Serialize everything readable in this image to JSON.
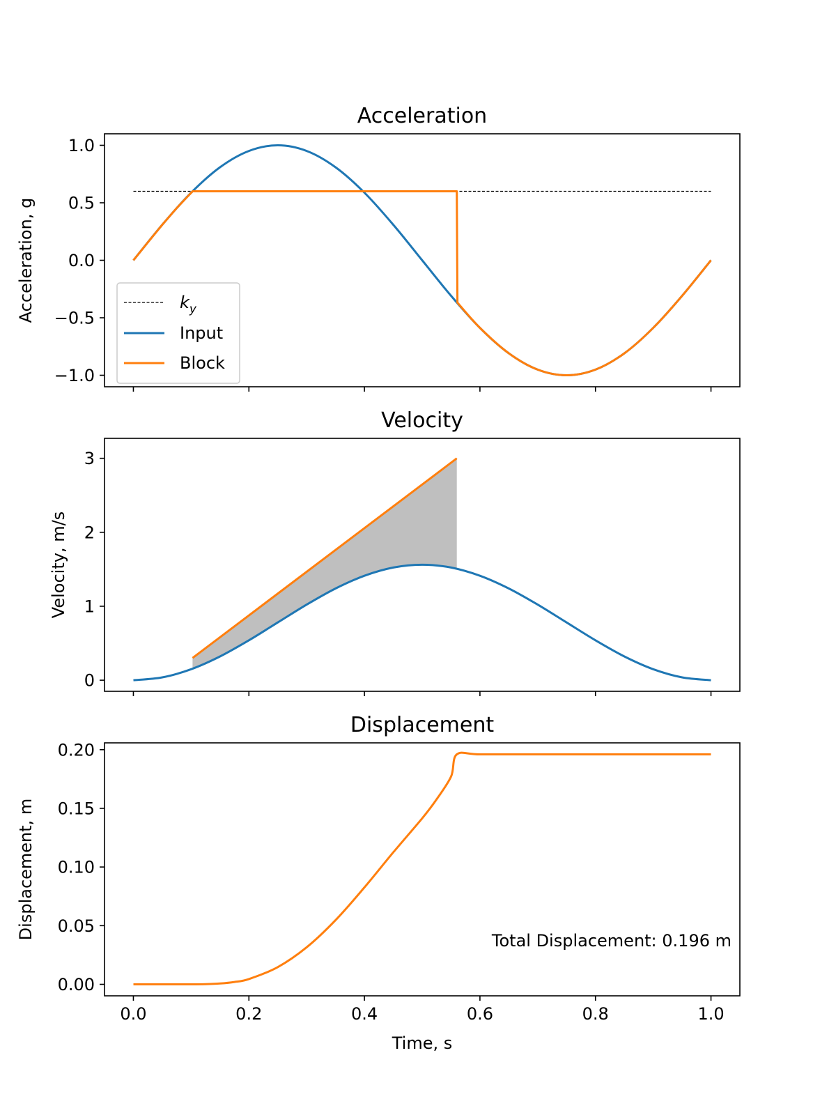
{
  "figure": {
    "xlabel": "Time, s",
    "x_ticks": [
      "0.0",
      "0.2",
      "0.4",
      "0.6",
      "0.8",
      "1.0"
    ],
    "series_colors": {
      "input": "#1f77b4",
      "block": "#ff7f0e",
      "ky": "#000000",
      "fill": "#bfbfbf"
    }
  },
  "chart_data": [
    {
      "type": "line",
      "title": "Acceleration",
      "xlabel": "",
      "ylabel": "Acceleration, g",
      "xlim": [
        -0.05,
        1.05
      ],
      "ylim": [
        -1.1,
        1.1
      ],
      "y_ticks": [
        {
          "value": 1.0,
          "label": "1.0"
        },
        {
          "value": 0.5,
          "label": "0.5"
        },
        {
          "value": 0.0,
          "label": "0.0"
        },
        {
          "value": -0.5,
          "label": "−0.5"
        },
        {
          "value": -1.0,
          "label": "−1.0"
        }
      ],
      "legend": {
        "placement": "lower-left",
        "ky_label": "k",
        "ky_subscript": "y",
        "input_label": "Input",
        "block_label": "Block"
      },
      "series": [
        {
          "key": "ky",
          "name": "k_y",
          "style": "dashed",
          "x": [
            0.0,
            1.0
          ],
          "y": [
            0.6,
            0.6
          ]
        },
        {
          "key": "input",
          "name": "Input",
          "x": [
            0.0,
            0.05,
            0.1,
            0.15,
            0.2,
            0.25,
            0.3,
            0.35,
            0.4,
            0.45,
            0.5,
            0.55,
            0.6,
            0.65,
            0.7,
            0.75,
            0.8,
            0.85,
            0.9,
            0.95,
            1.0
          ],
          "y": [
            0.0,
            0.309,
            0.588,
            0.809,
            0.951,
            1.0,
            0.951,
            0.809,
            0.588,
            0.309,
            0.0,
            -0.309,
            -0.588,
            -0.809,
            -0.951,
            -1.0,
            -0.951,
            -0.809,
            -0.588,
            -0.309,
            0.0
          ]
        },
        {
          "key": "block",
          "name": "Block",
          "x": [
            0.0,
            0.025,
            0.05,
            0.075,
            0.1024,
            0.2,
            0.3,
            0.4,
            0.5,
            0.56,
            0.561,
            0.6,
            0.65,
            0.7,
            0.75,
            0.8,
            0.85,
            0.9,
            0.95,
            1.0
          ],
          "y": [
            0.0,
            0.156,
            0.309,
            0.454,
            0.6,
            0.6,
            0.6,
            0.6,
            0.6,
            0.6,
            -0.368,
            -0.588,
            -0.809,
            -0.951,
            -1.0,
            -0.951,
            -0.809,
            -0.588,
            -0.309,
            0.0
          ]
        }
      ]
    },
    {
      "type": "line",
      "title": "Velocity",
      "xlabel": "",
      "ylabel": "Velocity, m/s",
      "xlim": [
        -0.05,
        1.05
      ],
      "ylim": [
        -0.15,
        3.27
      ],
      "y_ticks": [
        {
          "value": 3,
          "label": "3"
        },
        {
          "value": 2,
          "label": "2"
        },
        {
          "value": 1,
          "label": "1"
        },
        {
          "value": 0,
          "label": "0"
        }
      ],
      "shaded_region": {
        "between": [
          "input",
          "block"
        ],
        "x_range": [
          0.1024,
          0.56
        ]
      },
      "series": [
        {
          "key": "input",
          "name": "Input",
          "x": [
            0.0,
            0.05,
            0.1,
            0.15,
            0.2,
            0.25,
            0.3,
            0.35,
            0.4,
            0.45,
            0.5,
            0.55,
            0.6,
            0.65,
            0.7,
            0.75,
            0.8,
            0.85,
            0.9,
            0.95,
            1.0
          ],
          "y": [
            0.0,
            0.0381,
            0.1489,
            0.3215,
            0.5394,
            0.7805,
            1.0216,
            1.2394,
            1.412,
            1.5228,
            1.561,
            1.5228,
            1.412,
            1.2394,
            1.0216,
            0.7805,
            0.5394,
            0.3215,
            0.1489,
            0.0381,
            0.0
          ]
        },
        {
          "key": "block",
          "name": "Block",
          "x": [
            0.1024,
            0.56
          ],
          "y": [
            0.3,
            3.0
          ]
        }
      ]
    },
    {
      "type": "line",
      "title": "Displacement",
      "xlabel": "Time, s",
      "ylabel": "Displacement, m",
      "xlim": [
        -0.05,
        1.05
      ],
      "ylim": [
        -0.0098,
        0.2058
      ],
      "y_ticks": [
        {
          "value": 0.2,
          "label": "0.20"
        },
        {
          "value": 0.15,
          "label": "0.15"
        },
        {
          "value": 0.1,
          "label": "0.10"
        },
        {
          "value": 0.05,
          "label": "0.05"
        },
        {
          "value": 0.0,
          "label": "0.00"
        }
      ],
      "annotation": "Total Displacement: 0.196 m",
      "series": [
        {
          "key": "block",
          "name": "Block",
          "x": [
            0.0,
            0.05,
            0.1,
            0.125,
            0.15,
            0.175,
            0.2,
            0.25,
            0.3,
            0.35,
            0.4,
            0.45,
            0.5,
            0.525,
            0.55,
            0.56,
            0.6,
            0.7,
            0.8,
            0.9,
            1.0
          ],
          "y": [
            0.0,
            0.0,
            0.0,
            0.0001,
            0.0007,
            0.002,
            0.0045,
            0.0147,
            0.0316,
            0.0547,
            0.0826,
            0.1125,
            0.1415,
            0.1577,
            0.1771,
            0.196,
            0.196,
            0.196,
            0.196,
            0.196,
            0.196
          ]
        }
      ]
    }
  ]
}
